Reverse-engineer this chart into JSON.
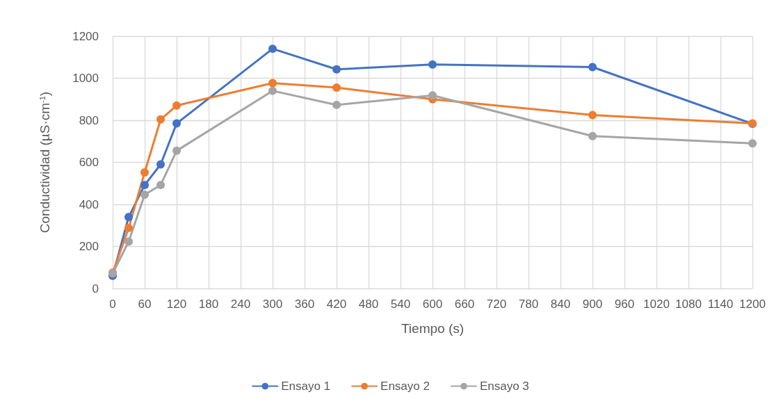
{
  "chart_data": {
    "type": "line",
    "xlabel": "Tiempo (s)",
    "ylabel": "Conductividad (µS·cm$^{-1}$)",
    "x": [
      0,
      30,
      60,
      90,
      120,
      300,
      420,
      600,
      900,
      1200
    ],
    "series": [
      {
        "name": "Ensayo 1",
        "color": "#4472c4",
        "values": [
          60,
          340,
          492,
          590,
          785,
          1140,
          1042,
          1065,
          1053,
          783
        ]
      },
      {
        "name": "Ensayo 2",
        "color": "#ed7d31",
        "values": [
          75,
          288,
          552,
          804,
          870,
          977,
          955,
          900,
          825,
          785
        ]
      },
      {
        "name": "Ensayo 3",
        "color": "#a5a5a5",
        "values": [
          72,
          223,
          446,
          492,
          655,
          940,
          873,
          918,
          725,
          690
        ]
      }
    ],
    "xlim": [
      0,
      1200
    ],
    "xticks": [
      0,
      60,
      120,
      180,
      240,
      300,
      360,
      420,
      480,
      540,
      600,
      660,
      720,
      780,
      840,
      900,
      960,
      1020,
      1080,
      1140,
      1200
    ],
    "ylim": [
      0,
      1200
    ],
    "yticks": [
      0,
      200,
      400,
      600,
      800,
      1000,
      1200
    ],
    "grid": true,
    "legend": "bottom",
    "marker": "circle",
    "line_style": "solid"
  }
}
